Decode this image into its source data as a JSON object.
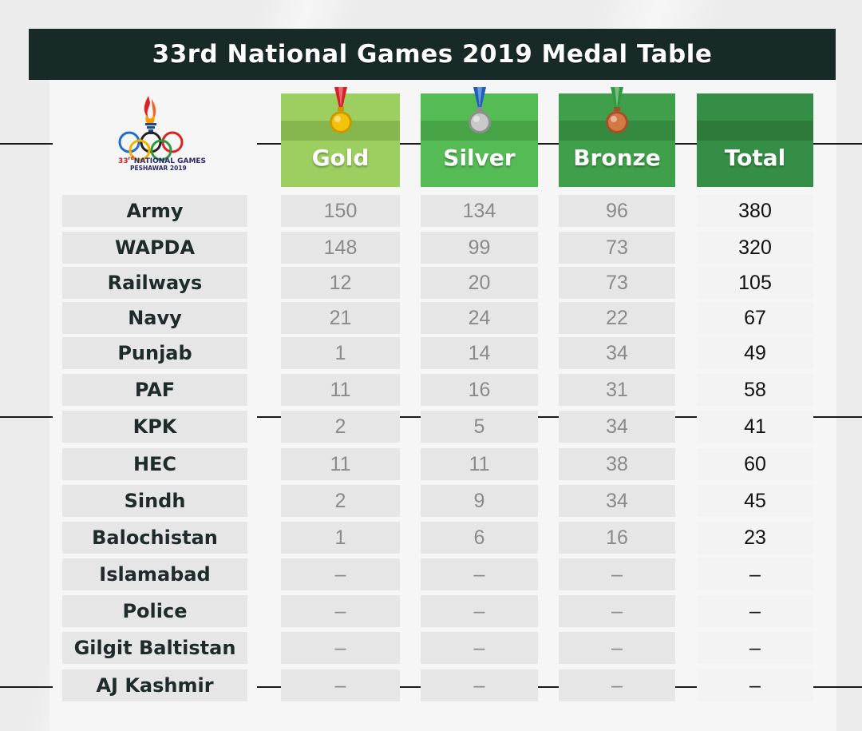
{
  "title": "33rd National Games 2019 Medal Table",
  "logo": {
    "number": "33",
    "suffix": "rd",
    "line1": "NATIONAL GAMES",
    "line2": "PESHAWAR 2019"
  },
  "columns": [
    {
      "key": "gold",
      "label": "Gold",
      "color": "#9ccf5f",
      "band": "#86b74f",
      "medal": "gold-medal-icon"
    },
    {
      "key": "silver",
      "label": "Silver",
      "color": "#55bb55",
      "band": "#46a346",
      "medal": "silver-medal-icon"
    },
    {
      "key": "bronze",
      "label": "Bronze",
      "color": "#3f9f4a",
      "band": "#358a3f",
      "medal": "bronze-medal-icon"
    },
    {
      "key": "total",
      "label": "Total",
      "color": "#358e45",
      "band": "#2d7a3b",
      "medal": ""
    }
  ],
  "rows": [
    {
      "team": "Army",
      "gold": "150",
      "silver": "134",
      "bronze": "96",
      "total": "380"
    },
    {
      "team": "WAPDA",
      "gold": "148",
      "silver": "99",
      "bronze": "73",
      "total": "320"
    },
    {
      "team": "Railways",
      "gold": "12",
      "silver": "20",
      "bronze": "73",
      "total": "105"
    },
    {
      "team": "Navy",
      "gold": "21",
      "silver": "24",
      "bronze": "22",
      "total": "67"
    },
    {
      "team": "Punjab",
      "gold": "1",
      "silver": "14",
      "bronze": "34",
      "total": "49"
    },
    {
      "team": "PAF",
      "gold": "11",
      "silver": "16",
      "bronze": "31",
      "total": "58"
    },
    {
      "team": "KPK",
      "gold": "2",
      "silver": "5",
      "bronze": "34",
      "total": "41"
    },
    {
      "team": "HEC",
      "gold": "11",
      "silver": "11",
      "bronze": "38",
      "total": "60"
    },
    {
      "team": "Sindh",
      "gold": "2",
      "silver": "9",
      "bronze": "34",
      "total": "45"
    },
    {
      "team": "Balochistan",
      "gold": "1",
      "silver": "6",
      "bronze": "16",
      "total": "23"
    },
    {
      "team": "Islamabad",
      "gold": "–",
      "silver": "–",
      "bronze": "–",
      "total": "–"
    },
    {
      "team": "Police",
      "gold": "–",
      "silver": "–",
      "bronze": "–",
      "total": "–"
    },
    {
      "team": "Gilgit Baltistan",
      "gold": "–",
      "silver": "–",
      "bronze": "–",
      "total": "–"
    },
    {
      "team": "AJ Kashmir",
      "gold": "–",
      "silver": "–",
      "bronze": "–",
      "total": "–"
    }
  ],
  "colors": {
    "title_bg": "#172a28",
    "cell_bg": "#e6e6e6",
    "team_text": "#1f2b2b",
    "value_text": "#8a8a8a"
  }
}
